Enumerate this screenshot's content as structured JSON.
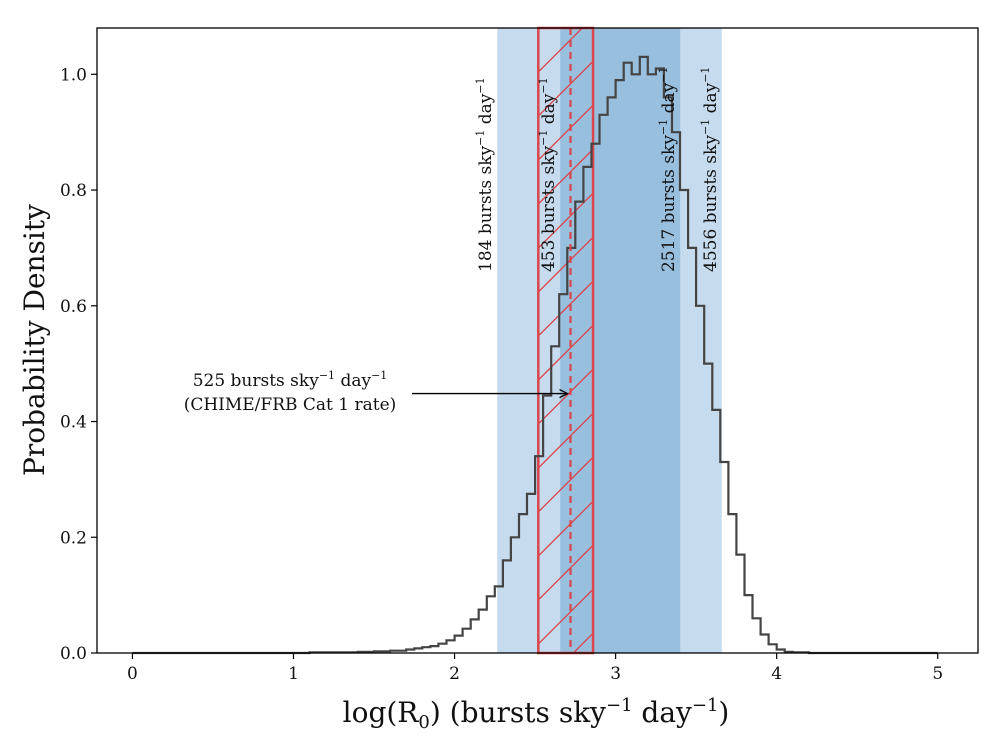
{
  "chart_data": {
    "type": "histogram",
    "xlabel": {
      "main": "log(R",
      "sub": "0",
      "mid": ") (bursts sky",
      "sup1": "−1",
      "mid2": " day",
      "sup2": "−1",
      "end": ")"
    },
    "ylabel": "Probability Density",
    "xlim": [
      -0.22,
      5.25
    ],
    "ylim": [
      0,
      1.08
    ],
    "xticks": [
      0,
      1,
      2,
      3,
      4,
      5
    ],
    "xtick_labels": [
      "0",
      "1",
      "2",
      "3",
      "4",
      "5"
    ],
    "yticks": [
      0.0,
      0.2,
      0.4,
      0.6,
      0.8,
      1.0
    ],
    "ytick_labels": [
      "0.0",
      "0.2",
      "0.4",
      "0.6",
      "0.8",
      "1.0"
    ],
    "bands": [
      {
        "from": 2.265,
        "to": 3.659,
        "color": "#c6dbed"
      },
      {
        "from": 2.656,
        "to": 3.401,
        "color": "#99bfdf"
      }
    ],
    "hatched_region": {
      "from": 2.52,
      "to": 2.86,
      "color": "#d9464b"
    },
    "cat1_line": {
      "x": 2.72,
      "color": "#d9464b"
    },
    "vertical_labels": [
      {
        "x": 2.265,
        "num": "184",
        "text": " bursts sky",
        "sup1": "−1",
        "mid": " day",
        "sup2": "−1"
      },
      {
        "x": 2.656,
        "num": "453",
        "text": " bursts sky",
        "sup1": "−1",
        "mid": " day",
        "sup2": "−1"
      },
      {
        "x": 3.401,
        "num": "2517",
        "text": " bursts sky",
        "sup1": "−1",
        "mid": " day",
        "sup2": "−1"
      },
      {
        "x": 3.659,
        "num": "4556",
        "text": " bursts sky",
        "sup1": "−1",
        "mid": " day",
        "sup2": "−1"
      }
    ],
    "annotation": {
      "line1": {
        "num": "525",
        "text": " bursts sky",
        "sup1": "−1",
        "mid": " day",
        "sup2": "−1"
      },
      "line2": "(CHIME/FRB Cat 1 rate)",
      "arrow_to": {
        "x": 2.72,
        "y": 0.45
      }
    },
    "series": [
      {
        "line_color": "#444444",
        "points": [
          [
            0.0,
            0.0
          ],
          [
            0.2,
            0.0
          ],
          [
            0.4,
            0.0
          ],
          [
            0.6,
            0.0
          ],
          [
            0.8,
            0.0
          ],
          [
            1.0,
            0.0
          ],
          [
            1.1,
            0.001
          ],
          [
            1.2,
            0.001
          ],
          [
            1.3,
            0.001
          ],
          [
            1.4,
            0.002
          ],
          [
            1.5,
            0.003
          ],
          [
            1.6,
            0.004
          ],
          [
            1.7,
            0.006
          ],
          [
            1.75,
            0.008
          ],
          [
            1.8,
            0.01
          ],
          [
            1.85,
            0.012
          ],
          [
            1.9,
            0.016
          ],
          [
            1.95,
            0.022
          ],
          [
            2.0,
            0.03
          ],
          [
            2.05,
            0.042
          ],
          [
            2.1,
            0.058
          ],
          [
            2.15,
            0.075
          ],
          [
            2.2,
            0.098
          ],
          [
            2.25,
            0.115
          ],
          [
            2.3,
            0.16
          ],
          [
            2.35,
            0.2
          ],
          [
            2.4,
            0.24
          ],
          [
            2.45,
            0.275
          ],
          [
            2.5,
            0.34
          ],
          [
            2.55,
            0.445
          ],
          [
            2.6,
            0.53
          ],
          [
            2.65,
            0.62
          ],
          [
            2.7,
            0.7
          ],
          [
            2.75,
            0.78
          ],
          [
            2.8,
            0.84
          ],
          [
            2.85,
            0.88
          ],
          [
            2.9,
            0.93
          ],
          [
            2.95,
            0.96
          ],
          [
            3.0,
            0.99
          ],
          [
            3.05,
            1.02
          ],
          [
            3.1,
            1.0
          ],
          [
            3.15,
            1.03
          ],
          [
            3.2,
            1.0
          ],
          [
            3.25,
            1.01
          ],
          [
            3.3,
            0.96
          ],
          [
            3.35,
            0.9
          ],
          [
            3.4,
            0.8
          ],
          [
            3.45,
            0.7
          ],
          [
            3.5,
            0.6
          ],
          [
            3.55,
            0.5
          ],
          [
            3.6,
            0.42
          ],
          [
            3.65,
            0.33
          ],
          [
            3.7,
            0.24
          ],
          [
            3.75,
            0.17
          ],
          [
            3.8,
            0.1
          ],
          [
            3.85,
            0.06
          ],
          [
            3.9,
            0.032
          ],
          [
            3.95,
            0.015
          ],
          [
            4.0,
            0.006
          ],
          [
            4.05,
            0.002
          ],
          [
            4.1,
            0.001
          ],
          [
            4.2,
            0.0
          ],
          [
            4.6,
            0.0
          ],
          [
            5.0,
            0.0
          ]
        ]
      }
    ]
  }
}
